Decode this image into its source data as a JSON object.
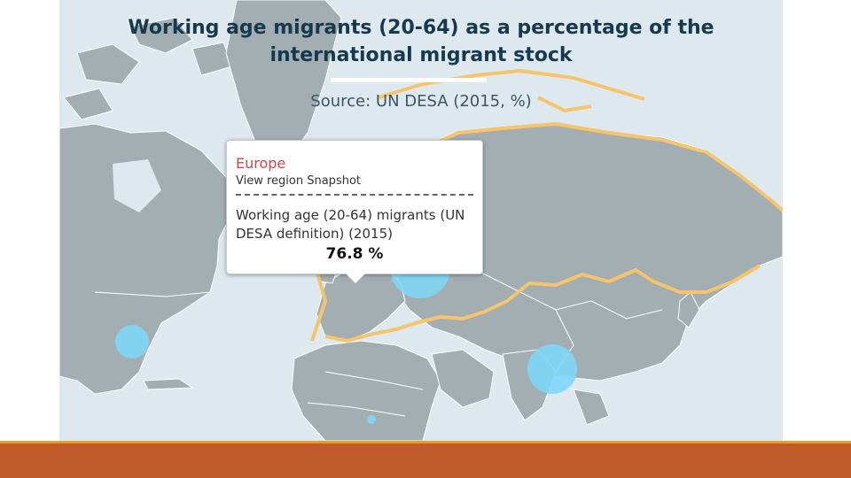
{
  "map": {
    "title_line1": "Working age migrants (20-64) as a percentage of the",
    "title_line2": "international migrant stock",
    "source": "Source: UN DESA (2015, %)",
    "colors": {
      "water": "#dde9ee",
      "land": "#a3aeb3",
      "highlight_border": "#f6c46a",
      "bubble": "#7dd7f7",
      "footer": "#c05a29",
      "footer_line": "#e2a02b"
    },
    "bubbles": [
      {
        "region": "Europe",
        "size": "large"
      },
      {
        "region": "North America",
        "size": "medium"
      },
      {
        "region": "Asia",
        "size": "large"
      },
      {
        "region": "Africa",
        "size": "small"
      }
    ]
  },
  "tooltip": {
    "region": "Europe",
    "link": "View region Snapshot",
    "label": "Working age (20-64) migrants (UN DESA definition) (2015)",
    "value": "76.8 %"
  }
}
